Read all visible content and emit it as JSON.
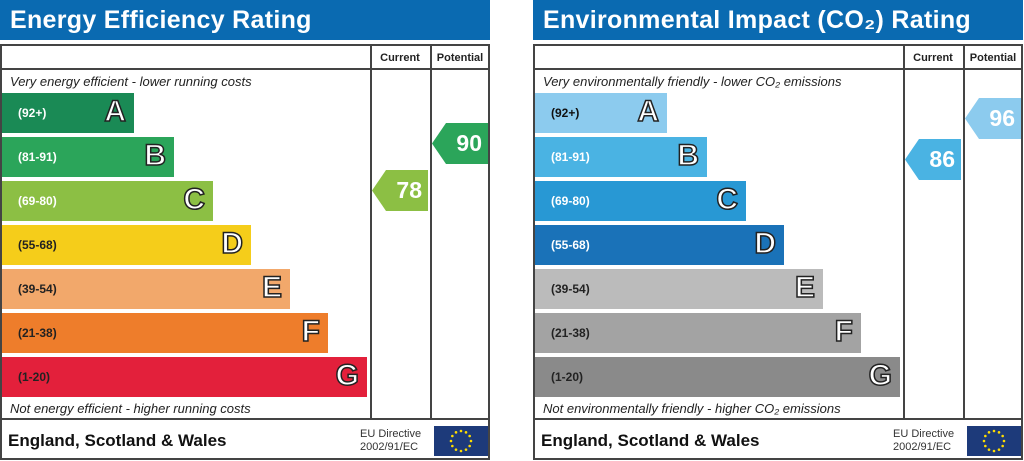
{
  "panels": [
    {
      "title": "Energy Efficiency Rating",
      "col_current": "Current",
      "col_potential": "Potential",
      "top_note": "Very energy efficient - lower running costs",
      "bottom_note": "Not energy efficient - higher running costs",
      "footer": "England, Scotland & Wales",
      "eu_line1": "EU Directive",
      "eu_line2": "2002/91/EC",
      "bands": [
        {
          "range": "(92+)",
          "letter": "A",
          "color": "#1a8a55"
        },
        {
          "range": "(81-91)",
          "letter": "B",
          "color": "#2ba55a"
        },
        {
          "range": "(69-80)",
          "letter": "C",
          "color": "#8cbf44"
        },
        {
          "range": "(55-68)",
          "letter": "D",
          "color": "#f5cd1a"
        },
        {
          "range": "(39-54)",
          "letter": "E",
          "color": "#f2a86b"
        },
        {
          "range": "(21-38)",
          "letter": "F",
          "color": "#ee7d2b"
        },
        {
          "range": "(1-20)",
          "letter": "G",
          "color": "#e3203b"
        }
      ],
      "current": {
        "value": "78",
        "band": "C",
        "color": "#8cbf44"
      },
      "potential": {
        "value": "90",
        "band": "B",
        "color": "#2ba55a"
      }
    },
    {
      "title": "Environmental Impact (CO₂) Rating",
      "col_current": "Current",
      "col_potential": "Potential",
      "top_note": "Very environmentally friendly - lower CO₂ emissions",
      "bottom_note": "Not environmentally friendly - higher CO₂ emissions",
      "footer": "England, Scotland & Wales",
      "eu_line1": "EU Directive",
      "eu_line2": "2002/91/EC",
      "bands": [
        {
          "range": "(92+)",
          "letter": "A",
          "color": "#8ccbee"
        },
        {
          "range": "(81-91)",
          "letter": "B",
          "color": "#4ab3e3"
        },
        {
          "range": "(69-80)",
          "letter": "C",
          "color": "#2898d4"
        },
        {
          "range": "(55-68)",
          "letter": "D",
          "color": "#1a72b8"
        },
        {
          "range": "(39-54)",
          "letter": "E",
          "color": "#bbbbbb"
        },
        {
          "range": "(21-38)",
          "letter": "F",
          "color": "#a3a3a3"
        },
        {
          "range": "(1-20)",
          "letter": "G",
          "color": "#8a8a8a"
        }
      ],
      "current": {
        "value": "86",
        "band": "B",
        "color": "#4ab3e3"
      },
      "potential": {
        "value": "96",
        "band": "A",
        "color": "#8ccbee"
      }
    }
  ],
  "chart_data": [
    {
      "type": "table",
      "title": "Energy Efficiency Rating",
      "categories": [
        "A",
        "B",
        "C",
        "D",
        "E",
        "F",
        "G"
      ],
      "ranges": [
        "92+",
        "81-91",
        "69-80",
        "55-68",
        "39-54",
        "21-38",
        "1-20"
      ],
      "current": 78,
      "potential": 90
    },
    {
      "type": "table",
      "title": "Environmental Impact (CO2) Rating",
      "categories": [
        "A",
        "B",
        "C",
        "D",
        "E",
        "F",
        "G"
      ],
      "ranges": [
        "92+",
        "81-91",
        "69-80",
        "55-68",
        "39-54",
        "21-38",
        "1-20"
      ],
      "current": 86,
      "potential": 96
    }
  ]
}
